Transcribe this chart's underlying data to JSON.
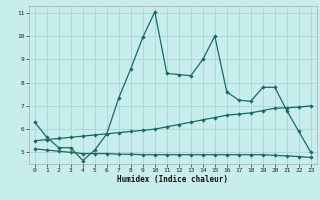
{
  "xlabel": "Humidex (Indice chaleur)",
  "bg_color": "#c8eded",
  "grid_color": "#b0d8d8",
  "line_color": "#1a6b60",
  "xlim": [
    -0.5,
    23.5
  ],
  "ylim": [
    4.5,
    11.3
  ],
  "xticks": [
    0,
    1,
    2,
    3,
    4,
    5,
    6,
    7,
    8,
    9,
    10,
    11,
    12,
    13,
    14,
    15,
    16,
    17,
    18,
    19,
    20,
    21,
    22,
    23
  ],
  "yticks": [
    5,
    6,
    7,
    8,
    9,
    10,
    11
  ],
  "series1_x": [
    0,
    1,
    2,
    3,
    4,
    5,
    6,
    7,
    8,
    9,
    10,
    11,
    12,
    13,
    14,
    15,
    16,
    17,
    18,
    19,
    20,
    21,
    22,
    23
  ],
  "series1_y": [
    6.3,
    5.65,
    5.2,
    5.2,
    4.65,
    5.1,
    5.8,
    7.35,
    8.6,
    9.95,
    11.05,
    8.4,
    8.35,
    8.3,
    9.0,
    10.0,
    7.6,
    7.25,
    7.2,
    7.8,
    7.8,
    6.8,
    5.9,
    5.0
  ],
  "series2_x": [
    0,
    1,
    2,
    3,
    4,
    5,
    6,
    7,
    8,
    9,
    10,
    11,
    12,
    13,
    14,
    15,
    16,
    17,
    18,
    19,
    20,
    21,
    22,
    23
  ],
  "series2_y": [
    5.5,
    5.55,
    5.6,
    5.65,
    5.7,
    5.75,
    5.8,
    5.85,
    5.9,
    5.95,
    6.0,
    6.1,
    6.2,
    6.3,
    6.4,
    6.5,
    6.6,
    6.65,
    6.7,
    6.8,
    6.9,
    6.92,
    6.95,
    7.0
  ],
  "series3_x": [
    0,
    1,
    2,
    3,
    4,
    5,
    6,
    7,
    8,
    9,
    10,
    11,
    12,
    13,
    14,
    15,
    16,
    17,
    18,
    19,
    20,
    21,
    22,
    23
  ],
  "series3_y": [
    5.15,
    5.1,
    5.05,
    5.0,
    4.95,
    4.95,
    4.95,
    4.92,
    4.92,
    4.9,
    4.9,
    4.9,
    4.9,
    4.9,
    4.9,
    4.9,
    4.9,
    4.9,
    4.9,
    4.9,
    4.87,
    4.85,
    4.82,
    4.78
  ]
}
